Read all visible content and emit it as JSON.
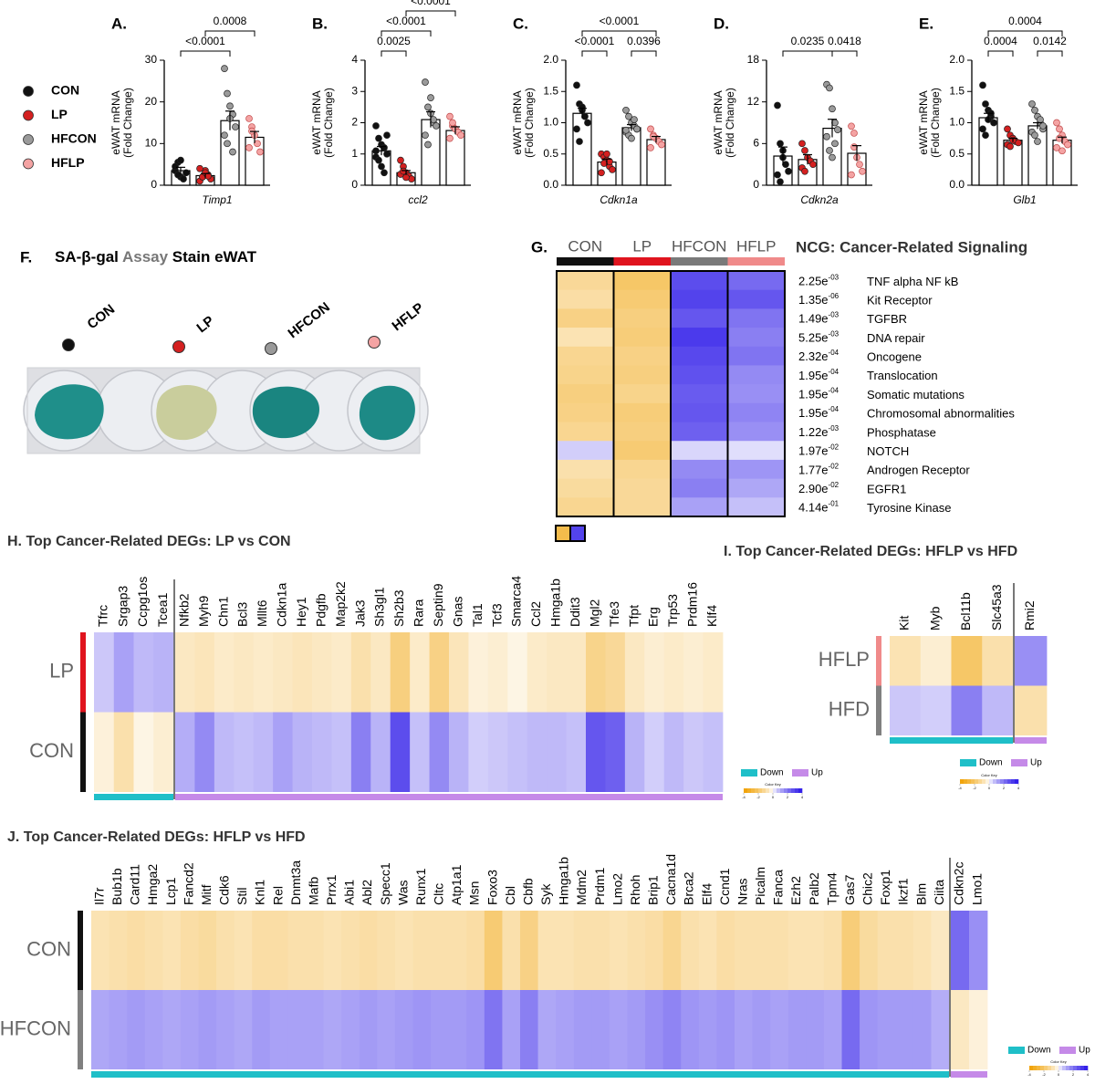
{
  "legend": [
    {
      "name": "CON",
      "color": "#111111"
    },
    {
      "name": "LP",
      "color": "#d42020"
    },
    {
      "name": "HFCON",
      "color": "#9a9a9a"
    },
    {
      "name": "HFLP",
      "color": "#f4a3a3"
    }
  ],
  "photo": {
    "label": "F.",
    "title": [
      "SA-β-gal",
      " Assay",
      " Stain eWAT"
    ],
    "samples": [
      "CON",
      "LP",
      "HFCON",
      "HFLP"
    ]
  },
  "chart_data": [
    {
      "type": "bar",
      "title": "A.",
      "y_label": [
        "eWAT mRNA",
        "(Fold Change)"
      ],
      "x_label": "Timp1",
      "values": [
        3.5,
        2.3,
        15.5,
        11.5
      ],
      "errors": [
        0.8,
        0.5,
        2.3,
        1.4
      ],
      "points": [
        [
          3.5,
          5.5,
          2,
          1.5,
          3,
          4.5,
          2.5,
          6
        ],
        [
          1,
          2,
          3.5,
          2.5,
          1.5,
          4,
          2,
          3,
          2.2
        ],
        [
          28,
          22,
          19,
          17,
          14,
          12,
          10,
          16,
          8
        ],
        [
          16,
          14,
          12,
          10,
          8,
          9,
          13
        ]
      ],
      "ylim": [
        0,
        30
      ],
      "yticks": [
        0,
        10,
        20,
        30
      ],
      "comparisons": [
        {
          "pair": [
            0,
            2
          ],
          "label": "<0.0001"
        },
        {
          "pair": [
            1,
            3
          ],
          "label": "0.0008"
        }
      ]
    },
    {
      "type": "bar",
      "title": "B.",
      "y_label": [
        "eWAT mRNA",
        "(Fold Change)"
      ],
      "x_label": "ccl2",
      "values": [
        1.1,
        0.4,
        2.1,
        1.75
      ],
      "errors": [
        0.14,
        0.07,
        0.25,
        0.12
      ],
      "points": [
        [
          1.9,
          1.5,
          1.3,
          1.2,
          1,
          0.9,
          0.8,
          0.6,
          0.4,
          1.6,
          1.1
        ],
        [
          0.8,
          0.6,
          0.4,
          0.3,
          0.2,
          0.35,
          0.45,
          0.25
        ],
        [
          3.3,
          2.5,
          2.3,
          2,
          1.9,
          1.6,
          1.3,
          2.8,
          2.1
        ],
        [
          2.2,
          1.9,
          1.8,
          1.7,
          1.6,
          1.5,
          2
        ]
      ],
      "ylim": [
        0,
        4
      ],
      "yticks": [
        0,
        1,
        2,
        3,
        4
      ],
      "comparisons": [
        {
          "pair": [
            0,
            1
          ],
          "label": "0.0025"
        },
        {
          "pair": [
            0,
            2
          ],
          "label": "<0.0001"
        },
        {
          "pair": [
            1,
            3
          ],
          "label": "<0.0001"
        }
      ]
    },
    {
      "type": "bar",
      "title": "C.",
      "y_label": [
        "eWAT mRNA",
        "(Fold Change)"
      ],
      "x_label": "Cdkn1a",
      "values": [
        1.15,
        0.37,
        0.92,
        0.73
      ],
      "errors": [
        0.08,
        0.05,
        0.05,
        0.05
      ],
      "points": [
        [
          1.6,
          1.3,
          1.2,
          1.1,
          1,
          0.9,
          0.7,
          1.25
        ],
        [
          0.5,
          0.45,
          0.4,
          0.3,
          0.25,
          0.2,
          0.35,
          0.5,
          0.38
        ],
        [
          1.2,
          1.1,
          1,
          0.95,
          0.9,
          0.85,
          0.8,
          0.75,
          1.05,
          0.9,
          0.88
        ],
        [
          0.9,
          0.8,
          0.75,
          0.7,
          0.65,
          0.6,
          0.78
        ]
      ],
      "ylim": [
        0,
        2
      ],
      "yticks": [
        {
          "value": 0,
          "label": "0.0"
        },
        0.5,
        {
          "value": 1,
          "label": "1.0"
        },
        1.5,
        {
          "value": 2,
          "label": "2.0"
        }
      ],
      "comparisons": [
        {
          "pair": [
            0,
            1
          ],
          "label": "<0.0001"
        },
        {
          "pair": [
            2,
            3
          ],
          "label": "0.0396"
        },
        {
          "pair": [
            0,
            3
          ],
          "label": "<0.0001"
        }
      ]
    },
    {
      "type": "bar",
      "title": "D.",
      "y_label": [
        "eWAT mRNA",
        "(Fold Change)"
      ],
      "x_label": "Cdkn2a",
      "values": [
        4.2,
        3.7,
        8.2,
        4.6
      ],
      "errors": [
        1.3,
        0.7,
        1.3,
        1.1
      ],
      "points": [
        [
          11.5,
          6,
          5,
          3,
          2,
          1.5,
          0.5,
          4
        ],
        [
          6,
          5,
          4,
          3.5,
          3,
          2.5,
          2
        ],
        [
          14.5,
          14,
          11,
          9,
          8,
          7,
          5,
          4,
          6
        ],
        [
          8.5,
          7.5,
          4,
          3,
          2,
          1.5,
          5.5
        ]
      ],
      "ylim": [
        0,
        18
      ],
      "yticks": [
        0,
        6,
        12,
        18
      ],
      "comparisons": [
        {
          "pair": [
            0,
            2
          ],
          "label": "0.0235"
        },
        {
          "pair": [
            2,
            3
          ],
          "label": "0.0418"
        }
      ]
    },
    {
      "type": "bar",
      "title": "E.",
      "y_label": [
        "eWAT mRNA",
        "(Fold Change)"
      ],
      "x_label": "Glb1",
      "values": [
        1.08,
        0.72,
        0.95,
        0.72
      ],
      "errors": [
        0.07,
        0.03,
        0.05,
        0.05
      ],
      "points": [
        [
          1.6,
          1.3,
          1.2,
          1.1,
          1,
          0.9,
          0.8,
          1.05,
          1.15
        ],
        [
          0.9,
          0.8,
          0.75,
          0.7,
          0.68,
          0.65,
          0.62,
          0.72
        ],
        [
          1.3,
          1.2,
          1.1,
          1,
          0.9,
          0.85,
          0.8,
          0.7,
          1.05,
          0.95
        ],
        [
          1,
          0.9,
          0.8,
          0.7,
          0.65,
          0.6,
          0.75,
          0.55
        ]
      ],
      "ylim": [
        0,
        2
      ],
      "yticks": [
        {
          "value": 0,
          "label": "0.0"
        },
        0.5,
        {
          "value": 1,
          "label": "1.0"
        },
        1.5,
        {
          "value": 2,
          "label": "2.0"
        }
      ],
      "comparisons": [
        {
          "pair": [
            0,
            1
          ],
          "label": "0.0004"
        },
        {
          "pair": [
            2,
            3
          ],
          "label": "0.0142"
        },
        {
          "pair": [
            0,
            3
          ],
          "label": "0.0004"
        }
      ]
    },
    {
      "type": "heatmap",
      "label": "G.",
      "title": "NCG: Cancer-Related Signaling",
      "groups": [
        {
          "name": "CON",
          "color": "#111111"
        },
        {
          "name": "LP",
          "color": "#e0141e"
        },
        {
          "name": "HFCON",
          "color": "#7a7a7a"
        },
        {
          "name": "HFLP",
          "color": "#f08a8a"
        }
      ],
      "rows": [
        {
          "p": [
            "2.25e",
            "-03"
          ],
          "name": "TNF alpha NF kB"
        },
        {
          "p": [
            "1.35e",
            "-06"
          ],
          "name": "Kit Receptor"
        },
        {
          "p": [
            "1.49e",
            "-03"
          ],
          "name": "TGFBR"
        },
        {
          "p": [
            "5.25e",
            "-03"
          ],
          "name": "DNA repair"
        },
        {
          "p": [
            "2.32e",
            "-04"
          ],
          "name": "Oncogene"
        },
        {
          "p": [
            "1.95e",
            "-04"
          ],
          "name": "Translocation"
        },
        {
          "p": [
            "1.95e",
            "-04"
          ],
          "name": "Somatic mutations"
        },
        {
          "p": [
            "1.95e",
            "-04"
          ],
          "name": "Chromosomal abnormalities"
        },
        {
          "p": [
            "1.22e",
            "-03"
          ],
          "name": "Phosphatase"
        },
        {
          "p": [
            "1.97e",
            "-02"
          ],
          "name": "NOTCH"
        },
        {
          "p": [
            "1.77e",
            "-02"
          ],
          "name": "Androgen Receptor"
        },
        {
          "p": [
            "2.90e",
            "-02"
          ],
          "name": "EGFR1"
        },
        {
          "p": [
            "4.14e",
            "-01"
          ],
          "name": "Tyrosine Kinase"
        }
      ],
      "values": [
        [
          -1.2,
          -2,
          2.8,
          2.2
        ],
        [
          -1,
          -1.8,
          3,
          2.6
        ],
        [
          -1.5,
          -1.6,
          2.6,
          2
        ],
        [
          -0.8,
          -1.7,
          3.2,
          1.8
        ],
        [
          -1.3,
          -1.5,
          2.9,
          2
        ],
        [
          -1.4,
          -1.6,
          2.7,
          1.6
        ],
        [
          -1.6,
          -1.4,
          2.5,
          1.5
        ],
        [
          -1.5,
          -1.7,
          2.6,
          1.7
        ],
        [
          -1.3,
          -1.6,
          2.4,
          1.5
        ],
        [
          0.5,
          -1.8,
          0.4,
          0.3
        ],
        [
          -0.9,
          -1.3,
          1.6,
          1.4
        ],
        [
          -1.1,
          -1.2,
          1.8,
          1.1
        ],
        [
          -1.3,
          -1.2,
          1.2,
          0.7
        ]
      ]
    },
    {
      "type": "clustered_heatmap",
      "title": "H. Top Cancer-Related DEGs: LP vs CON",
      "groups": [
        {
          "name": "LP",
          "color": "#e0141e"
        },
        {
          "name": "CON",
          "color": "#111111"
        }
      ],
      "genes_down": [
        "Tfrc",
        "Srgap3",
        "Ccpg1os",
        "Tcea1"
      ],
      "genes_up": [
        "Nfkb2",
        "Myh9",
        "Chn1",
        "Bcl3",
        "Mllt6",
        "Cdkn1a",
        "Hey1",
        "Pdgfb",
        "Map2k2",
        "Jak3",
        "Sh3gl1",
        "Sh2b3",
        "Rara",
        "Septin9",
        "Gnas",
        "Tal1",
        "Tcf3",
        "Smarca4",
        "Ccl2",
        "Hmga1b",
        "Ddit3",
        "Mgl2",
        "Tfe3",
        "Tfpt",
        "Erg",
        "Trp53",
        "Prdm16",
        "Klf4"
      ],
      "values_down": [
        [
          0.6,
          1.2,
          0.8,
          0.9
        ],
        [
          -0.3,
          -0.9,
          -0.2,
          -0.4
        ]
      ],
      "values_up": [
        [
          -0.6,
          -0.7,
          -0.5,
          -0.6,
          -0.5,
          -0.6,
          -0.7,
          -0.6,
          -0.5,
          -0.9,
          -0.6,
          -1.6,
          -0.5,
          -1.5,
          -0.7,
          -0.3,
          -0.4,
          -0.2,
          -0.5,
          -0.6,
          -0.6,
          -1.4,
          -1.2,
          -0.6,
          -0.4,
          -0.5,
          -0.4,
          -0.5
        ],
        [
          1,
          1.6,
          0.8,
          0.7,
          0.8,
          1.2,
          0.9,
          0.8,
          0.7,
          1.8,
          0.9,
          2.8,
          0.7,
          1.6,
          0.9,
          0.5,
          0.6,
          0.7,
          0.8,
          0.8,
          0.7,
          2.6,
          2.4,
          0.9,
          0.5,
          0.8,
          0.6,
          0.7
        ]
      ],
      "legend": [
        {
          "name": "Down",
          "color": "#1fbfc8"
        },
        {
          "name": "Up",
          "color": "#c58ae8"
        }
      ],
      "color_key": {
        "title": "Color Key",
        "lim": [
          -4,
          4
        ],
        "ticks": [
          -4,
          -2,
          0,
          2,
          4
        ]
      }
    },
    {
      "type": "clustered_heatmap",
      "title": "I. Top Cancer-Related DEGs: HFLP vs HFD",
      "groups": [
        {
          "name": "HFLP",
          "color": "#f08a8a"
        },
        {
          "name": "HFD",
          "color": "#808080"
        }
      ],
      "genes_down": [
        "Kit",
        "Myb",
        "Bcl11b",
        "Slc45a3"
      ],
      "genes_up": [
        "Rmi2"
      ],
      "values_down": [
        [
          -0.8,
          -0.4,
          -2,
          -0.9
        ],
        [
          0.6,
          0.5,
          1.8,
          0.8
        ]
      ],
      "values_up": [
        [
          1.5
        ],
        [
          -0.9
        ]
      ],
      "legend": [
        {
          "name": "Down",
          "color": "#1fbfc8"
        },
        {
          "name": "Up",
          "color": "#c58ae8"
        }
      ],
      "color_key": {
        "title": "Color Key",
        "lim": [
          -4,
          4
        ],
        "ticks": [
          -4,
          -2,
          0,
          2,
          4
        ]
      }
    },
    {
      "type": "clustered_heatmap",
      "title": "J. Top Cancer-Related DEGs: HFLP vs HFD",
      "groups": [
        {
          "name": "CON",
          "color": "#111111"
        },
        {
          "name": "HFCON",
          "color": "#808080"
        }
      ],
      "genes_down": [
        "Il7r",
        "Bub1b",
        "Card11",
        "Hmga2",
        "Lcp1",
        "Fancd2",
        "Mitf",
        "Cdk6",
        "Stil",
        "Knl1",
        "Rel",
        "Dnmt3a",
        "Mafb",
        "Prrx1",
        "Abi1",
        "Abl2",
        "Specc1",
        "Was",
        "Runx1",
        "Cltc",
        "Atp1a1",
        "Msn",
        "Foxo3",
        "Cbl",
        "Cbfb",
        "Syk",
        "Hmga1b",
        "Mdm2",
        "Prdm1",
        "Lmo2",
        "Rhoh",
        "Brip1",
        "Cacna1d",
        "Brca2",
        "Elf4",
        "Ccnd1",
        "Nras",
        "Picalm",
        "Fanca",
        "Ezh2",
        "Palb2",
        "Tpm4",
        "Gas7",
        "Chic2",
        "Foxp1",
        "Ikzf1",
        "Blm",
        "Ciita"
      ],
      "genes_up": [
        "Cdkn2c",
        "Lmo1"
      ],
      "values_down": [
        [
          -0.8,
          -0.9,
          -1,
          -0.9,
          -0.8,
          -1,
          -1.1,
          -0.9,
          -0.8,
          -1,
          -1,
          -0.9,
          -0.9,
          -0.8,
          -0.9,
          -1,
          -0.9,
          -0.8,
          -0.9,
          -0.9,
          -0.9,
          -1,
          -1.8,
          -0.9,
          -1.5,
          -0.8,
          -0.8,
          -0.9,
          -0.9,
          -0.8,
          -0.9,
          -1,
          -1.3,
          -0.9,
          -0.8,
          -1,
          -0.9,
          -0.9,
          -0.9,
          -0.8,
          -0.8,
          -0.9,
          -1.7,
          -1.1,
          -0.9,
          -0.9,
          -0.8,
          -0.6
        ],
        [
          1.1,
          1.2,
          1.3,
          1.2,
          1.1,
          1.2,
          1.3,
          1.2,
          1.1,
          1.3,
          1.2,
          1.2,
          1.2,
          1.1,
          1.2,
          1.3,
          1.2,
          1.3,
          1.4,
          1.3,
          1.3,
          1.4,
          2,
          1.2,
          1.8,
          1.1,
          1.2,
          1.3,
          1.3,
          1.2,
          1.3,
          1.5,
          1.7,
          1.4,
          1.3,
          1.4,
          1.2,
          1.3,
          1.2,
          1.3,
          1.3,
          1.2,
          2.2,
          1.4,
          1.3,
          1.3,
          1.3,
          1
        ]
      ],
      "values_up": [
        [
          2.2,
          1.5
        ],
        [
          -0.6,
          -0.3
        ]
      ],
      "legend": [
        {
          "name": "Down",
          "color": "#1fbfc8"
        },
        {
          "name": "Up",
          "color": "#c58ae8"
        }
      ],
      "color_key": {
        "title": "Color Key",
        "lim": [
          -4,
          4
        ],
        "ticks": [
          -4,
          -2,
          0,
          2,
          4
        ]
      }
    }
  ]
}
